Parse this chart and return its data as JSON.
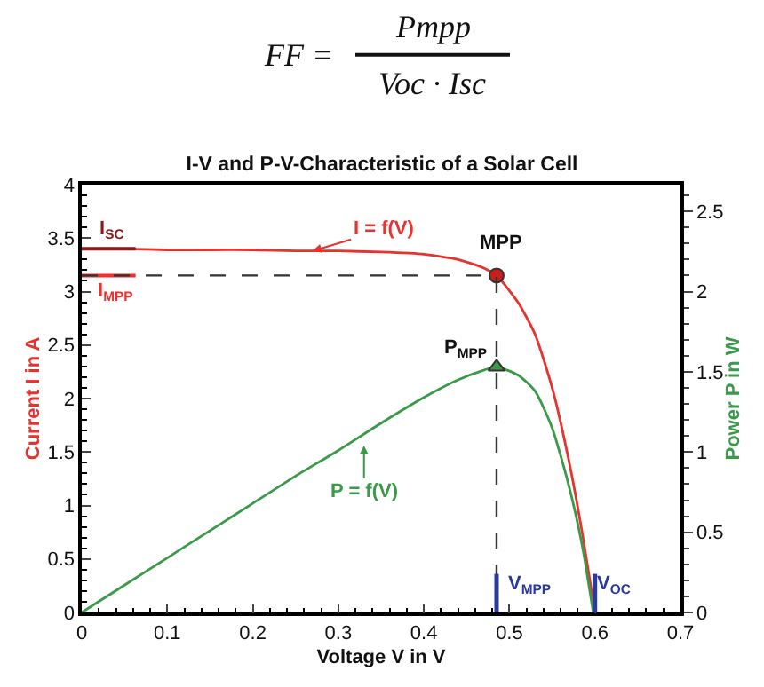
{
  "chart_data": {
    "type": "line",
    "title": "I-V and P-V-Characteristic of a Solar Cell",
    "xlabel": "Voltage V in V",
    "ylabel": "Current I in A",
    "y2label": "Power P in W",
    "xlim": [
      0,
      0.7
    ],
    "xticks": [
      0,
      0.1,
      0.2,
      0.3,
      0.4,
      0.5,
      0.6,
      0.7
    ],
    "ylim": [
      0,
      4
    ],
    "yticks": [
      0,
      0.5,
      1,
      1.5,
      2,
      2.5,
      3,
      3.5,
      4
    ],
    "y2lim": [
      0,
      2.667
    ],
    "y2ticks": [
      0,
      0.5,
      1,
      1.5,
      2,
      2.5
    ],
    "series": [
      {
        "axis": "y",
        "color": "#e8322e",
        "x": [
          0,
          0.05,
          0.1,
          0.15,
          0.2,
          0.25,
          0.3,
          0.35,
          0.4,
          0.44,
          0.47,
          0.485,
          0.51,
          0.53,
          0.55,
          0.57,
          0.585,
          0.6
        ],
        "values": [
          3.4,
          3.4,
          3.39,
          3.39,
          3.39,
          3.38,
          3.38,
          3.37,
          3.35,
          3.3,
          3.22,
          3.15,
          2.9,
          2.6,
          2.1,
          1.4,
          0.75,
          0
        ]
      },
      {
        "axis": "y2",
        "color": "#3a9a4a",
        "x": [
          0,
          0.05,
          0.1,
          0.15,
          0.2,
          0.25,
          0.3,
          0.35,
          0.4,
          0.44,
          0.47,
          0.485,
          0.51,
          0.53,
          0.55,
          0.57,
          0.585,
          0.598
        ],
        "values": [
          0,
          0.17,
          0.34,
          0.51,
          0.68,
          0.85,
          1.01,
          1.18,
          1.34,
          1.45,
          1.51,
          1.53,
          1.48,
          1.38,
          1.15,
          0.78,
          0.42,
          0
        ]
      },
      {
        "type": "scatter",
        "axis": "y",
        "color": "#c81e1e",
        "marker": "circle",
        "x": [
          0.485
        ],
        "values": [
          3.15
        ]
      },
      {
        "type": "scatter",
        "axis": "y2",
        "color": "#3a9a4a",
        "marker": "triangle",
        "x": [
          0.485
        ],
        "values": [
          1.53
        ]
      }
    ],
    "ref_lines": [
      {
        "axis": "x",
        "value": 0.485,
        "color": "#333333",
        "line_style": "dashed"
      },
      {
        "axis": "x",
        "value": 0.485,
        "color": "#2a3a9a"
      },
      {
        "axis": "x",
        "value": 0.6,
        "color": "#2a3a9a"
      },
      {
        "axis": "y",
        "value": 3.15,
        "color": "#e8322e"
      },
      {
        "axis": "y",
        "value": 3.15,
        "color": "#333333",
        "line_style": "dashed"
      },
      {
        "axis": "y",
        "value": 3.4,
        "color": "#8a1a1a"
      }
    ],
    "annotations": [
      "FF =",
      "Pmpp",
      "Voc · Isc",
      "I$_{SC}$",
      "I$_{MPP}$",
      "MPP",
      "P$_{MPP}$",
      "V$_{MPP}$",
      "V$_{OC}$",
      {
        "text": "I = f(V)",
        "x": 0.27,
        "y": 3.38
      },
      {
        "text": "P = f(V)",
        "x": 0.33,
        "y": 1.56
      }
    ]
  }
}
